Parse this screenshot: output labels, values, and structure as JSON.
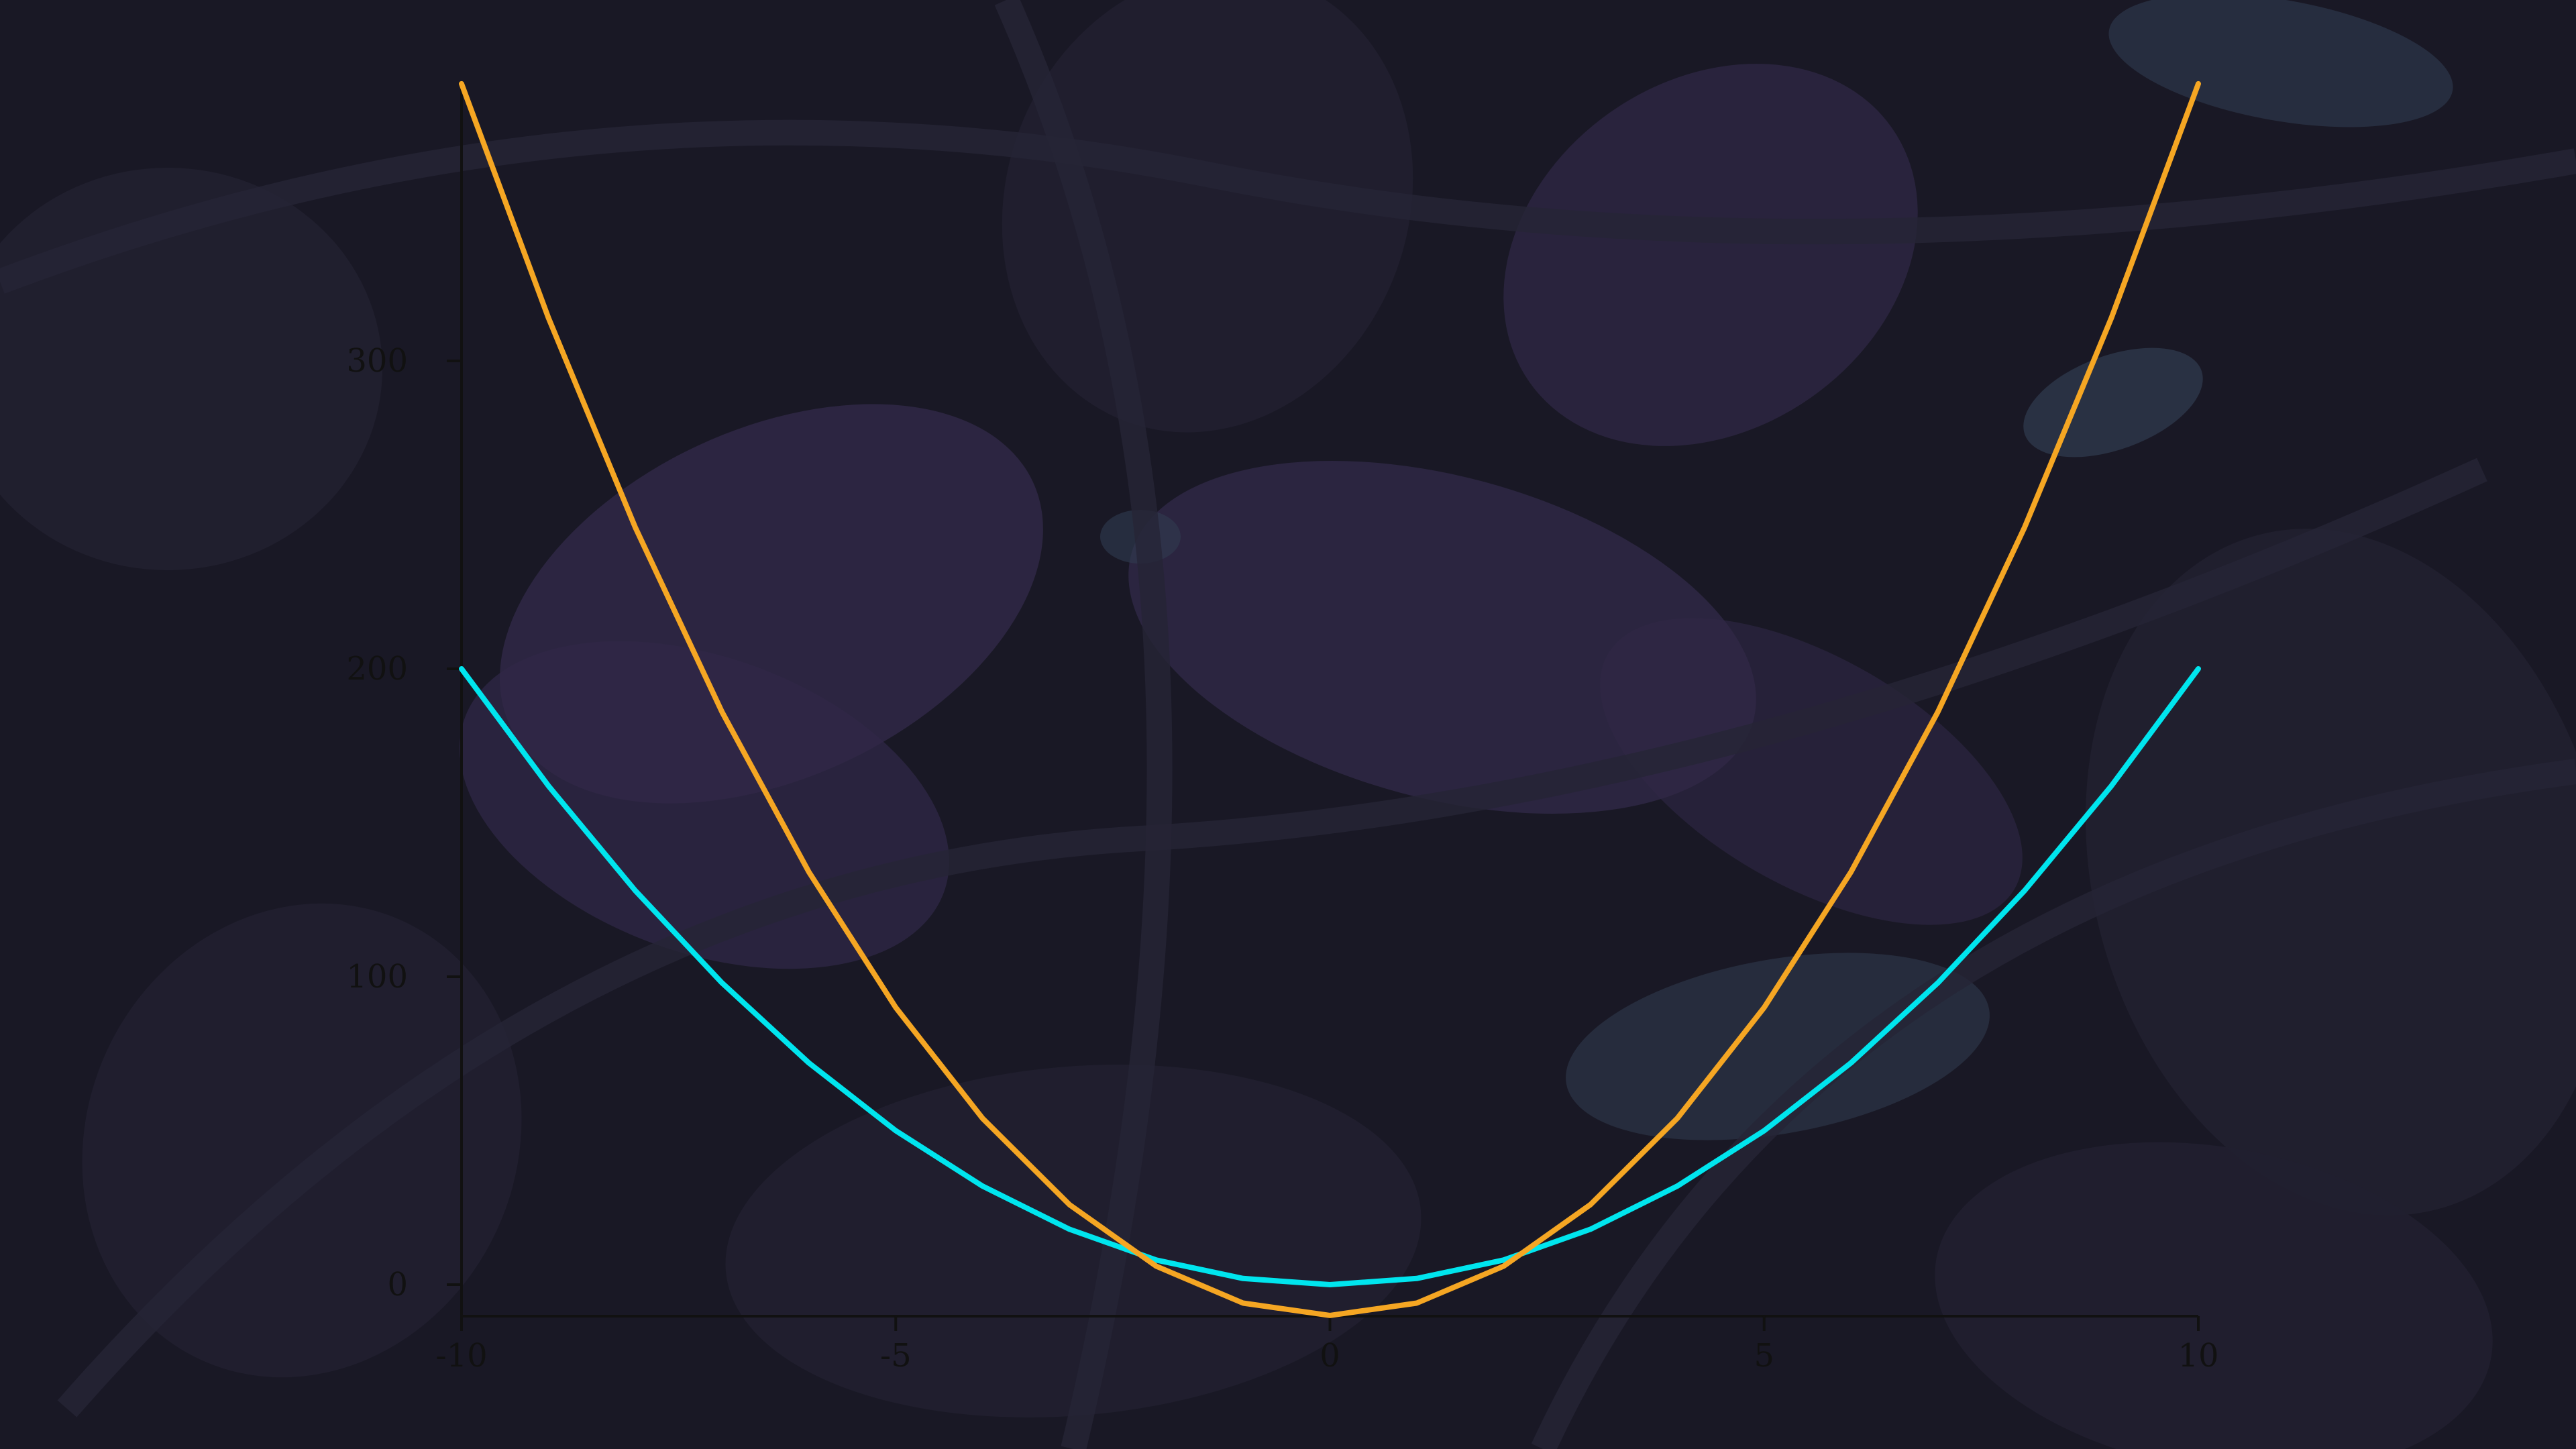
{
  "chart_data": {
    "type": "line",
    "title": "",
    "xlabel": "",
    "ylabel": "",
    "xlim": [
      -10,
      10
    ],
    "ylim": [
      -10,
      390
    ],
    "x_ticks": [
      -10,
      -5,
      0,
      5,
      10
    ],
    "x_tick_labels": [
      "-10",
      "-5",
      "0",
      "5",
      "10"
    ],
    "y_ticks": [
      0,
      100,
      200,
      300
    ],
    "y_tick_labels": [
      "0",
      "100",
      "200",
      "300"
    ],
    "grid": false,
    "legend": "none",
    "x": [
      -10,
      -9,
      -8,
      -7,
      -6,
      -5,
      -4,
      -3,
      -2,
      -1,
      0,
      1,
      2,
      3,
      4,
      5,
      6,
      7,
      8,
      9,
      10
    ],
    "series": [
      {
        "color": "#00e5ee",
        "values": [
          200,
          162,
          128,
          98,
          72,
          50,
          32,
          18,
          8,
          2,
          0,
          2,
          8,
          18,
          32,
          50,
          72,
          98,
          128,
          162,
          200
        ]
      },
      {
        "color": "#f5a623",
        "values": [
          390,
          314,
          246,
          186,
          134,
          90,
          54,
          26,
          6,
          -6,
          -10,
          -6,
          6,
          26,
          54,
          90,
          134,
          186,
          246,
          314,
          390
        ]
      }
    ]
  },
  "colors": {
    "background": "#1b1a28",
    "foliage_dark": "#262436",
    "foliage_purple": "#3a2f55",
    "foliage_slate": "#3b4a62",
    "axis": "#111111"
  }
}
